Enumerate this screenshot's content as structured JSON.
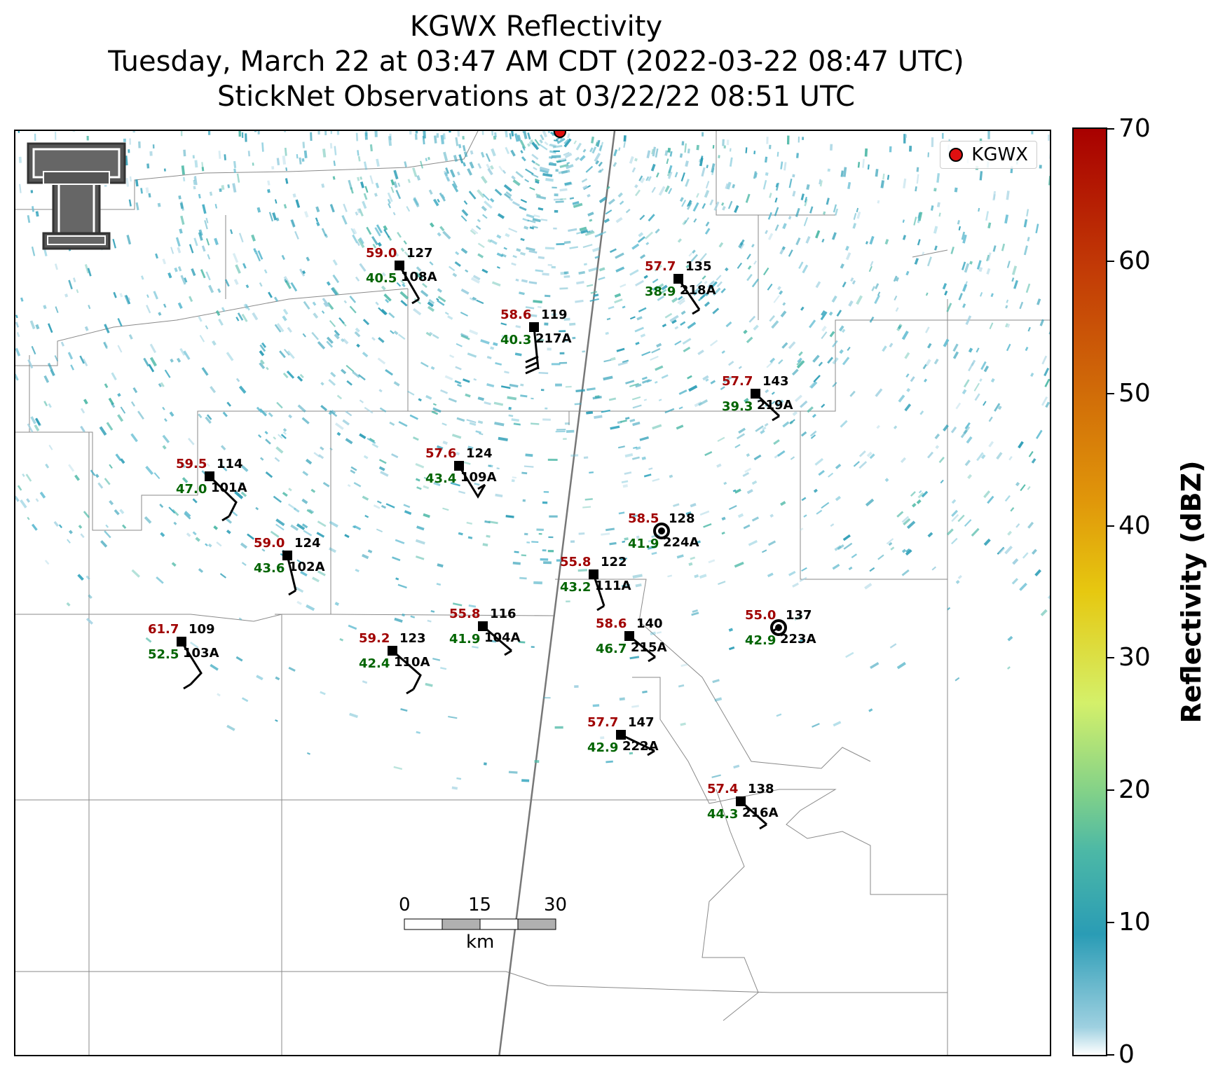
{
  "title": {
    "line1": "KGWX Reflectivity",
    "line2": "Tuesday, March 22 at 03:47 AM CDT (2022-03-22 08:47 UTC)",
    "line3": "StickNet Observations at 03/22/22 08:51 UTC"
  },
  "legend": {
    "label": "KGWX",
    "marker_color": "#e01010"
  },
  "colorbar": {
    "label": "Reflectivity (dBZ)",
    "ticks": [
      "0",
      "10",
      "20",
      "30",
      "40",
      "50",
      "60",
      "70"
    ],
    "range": [
      0,
      70
    ]
  },
  "scale_bar": {
    "ticks": [
      "0",
      "15",
      "30"
    ],
    "unit": "km"
  },
  "colors": {
    "temp": "#a00000",
    "dewpoint": "#006400",
    "radar_echo": "#2a9cb5"
  },
  "stations": [
    {
      "id": "108A",
      "temp": "59.0",
      "dew": "40.5",
      "dir": "127"
    },
    {
      "id": "218A",
      "temp": "57.7",
      "dew": "38.9",
      "dir": "135"
    },
    {
      "id": "217A",
      "temp": "58.6",
      "dew": "40.3",
      "dir": "119"
    },
    {
      "id": "219A",
      "temp": "57.7",
      "dew": "39.3",
      "dir": "143"
    },
    {
      "id": "109A",
      "temp": "57.6",
      "dew": "43.4",
      "dir": "124"
    },
    {
      "id": "101A",
      "temp": "59.5",
      "dew": "47.0",
      "dir": "114"
    },
    {
      "id": "224A",
      "temp": "58.5",
      "dew": "41.9",
      "dir": "128"
    },
    {
      "id": "102A",
      "temp": "59.0",
      "dew": "43.6",
      "dir": "124"
    },
    {
      "id": "111A",
      "temp": "55.8",
      "dew": "43.2",
      "dir": "122"
    },
    {
      "id": "103A",
      "temp": "61.7",
      "dew": "52.5",
      "dir": "109"
    },
    {
      "id": "104A",
      "temp": "55.8",
      "dew": "41.9",
      "dir": "116"
    },
    {
      "id": "110A",
      "temp": "59.2",
      "dew": "42.4",
      "dir": "123"
    },
    {
      "id": "215A",
      "temp": "58.6",
      "dew": "46.7",
      "dir": "140"
    },
    {
      "id": "223A",
      "temp": "55.0",
      "dew": "42.9",
      "dir": "137"
    },
    {
      "id": "222A",
      "temp": "57.7",
      "dew": "42.9",
      "dir": "147"
    },
    {
      "id": "216A",
      "temp": "57.4",
      "dew": "44.3",
      "dir": "138"
    }
  ]
}
